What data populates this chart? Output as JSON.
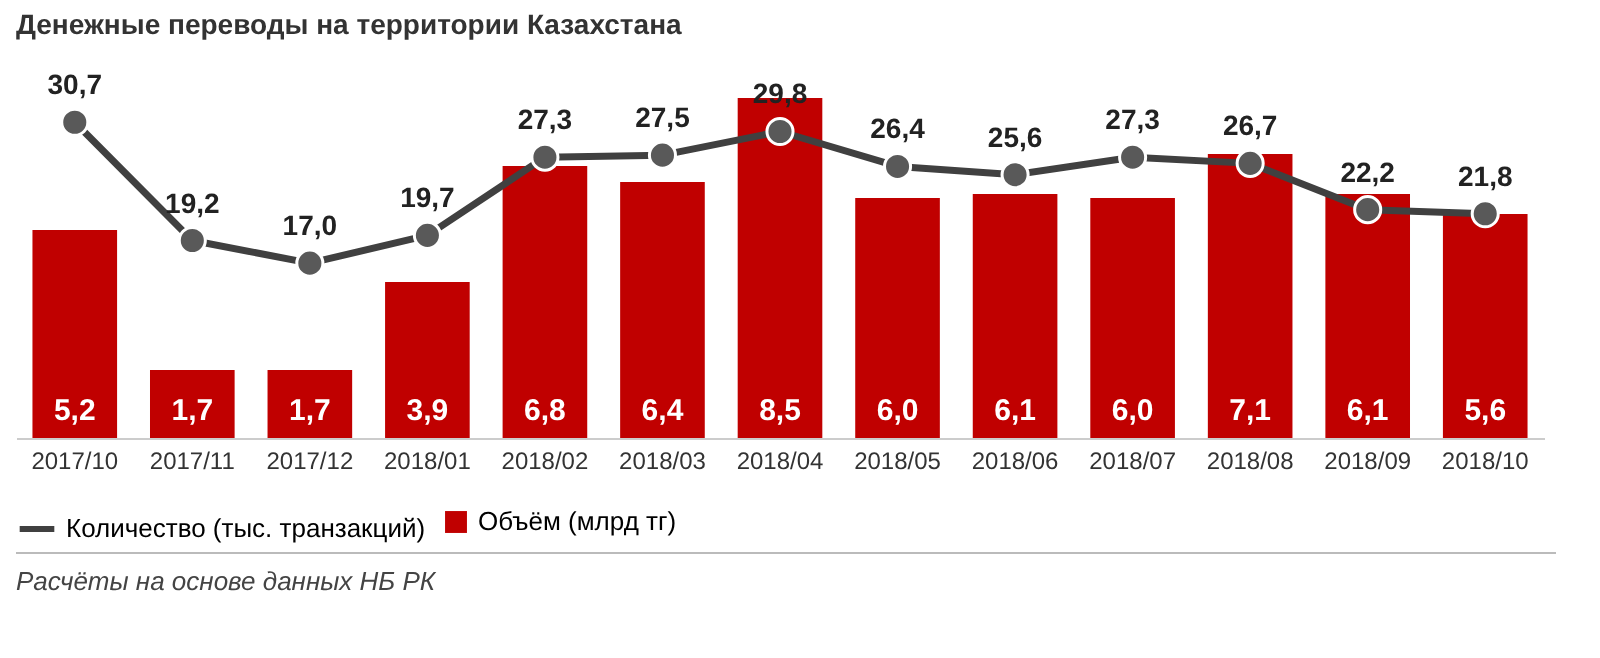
{
  "chart_data": {
    "type": "bar",
    "title": "Денежные переводы на территории Казахстана",
    "categories": [
      "2017/10",
      "2017/11",
      "2017/12",
      "2018/01",
      "2018/02",
      "2018/03",
      "2018/04",
      "2018/05",
      "2018/06",
      "2018/07",
      "2018/08",
      "2018/09",
      "2018/10"
    ],
    "series": [
      {
        "name": "Объём (млрд тг)",
        "color": "#c00000",
        "values": [
          5.2,
          1.7,
          1.7,
          3.9,
          6.8,
          6.4,
          8.5,
          6.0,
          6.1,
          6.0,
          7.1,
          6.1,
          5.6
        ],
        "value_labels": [
          "5,2",
          "1,7",
          "1,7",
          "3,9",
          "6,8",
          "6,4",
          "8,5",
          "6,0",
          "6,1",
          "6,0",
          "7,1",
          "6,1",
          "5,6"
        ]
      },
      {
        "name": "Количество (тыс. транзакций)",
        "type": "line",
        "axis": "y2",
        "color": "#404040",
        "values": [
          30.7,
          19.2,
          17.0,
          19.7,
          27.3,
          27.5,
          29.8,
          26.4,
          25.6,
          27.3,
          26.7,
          22.2,
          21.8
        ],
        "value_labels": [
          "30,7",
          "19,2",
          "17,0",
          "19,7",
          "27,3",
          "27,5",
          "29,8",
          "26,4",
          "25,6",
          "27,3",
          "26,7",
          "22,2",
          "21,8"
        ]
      }
    ],
    "tick_labels": "x",
    "grid": false,
    "legend": "bottom",
    "marker": "circle",
    "line_style": "solid",
    "annotations": [
      "Расчёты на основе данных НБ РК"
    ]
  }
}
